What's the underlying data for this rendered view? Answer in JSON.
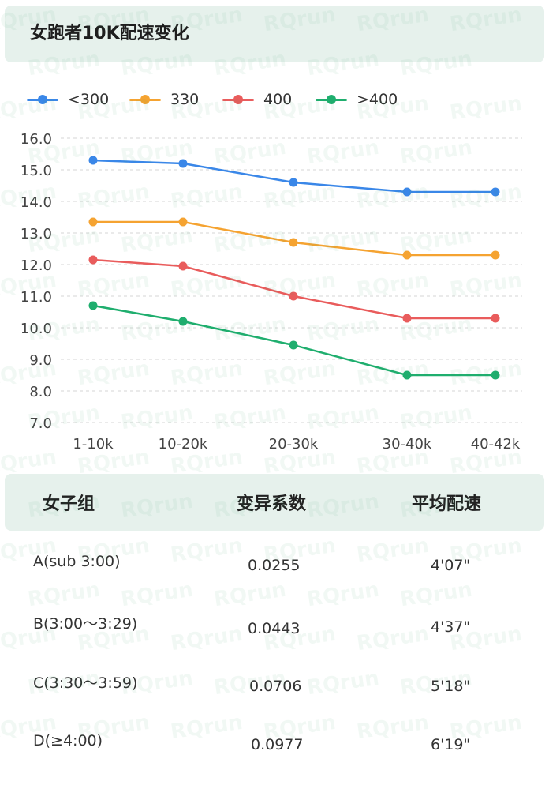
{
  "title": "女跑者10K配速变化",
  "watermark": "RQrun",
  "chart_data": {
    "type": "line",
    "categories": [
      "1-10k",
      "10-20k",
      "20-30k",
      "30-40k",
      "40-42k"
    ],
    "y_ticks": [
      "16.0",
      "15.0",
      "14.0",
      "13.0",
      "12.0",
      "11.0",
      "10.0",
      "9.0",
      "8.0",
      "7.0"
    ],
    "ylim": [
      7.0,
      16.0
    ],
    "grid": true,
    "legend_position": "top-left",
    "series": [
      {
        "name": "<300",
        "color": "#3a87e8",
        "values": [
          15.3,
          15.2,
          14.6,
          14.3,
          14.3
        ]
      },
      {
        "name": "330",
        "color": "#f5a331",
        "values": [
          13.35,
          13.35,
          12.7,
          12.3,
          12.3
        ]
      },
      {
        "name": "400",
        "color": "#e95c5c",
        "values": [
          12.15,
          11.95,
          11.0,
          10.3,
          10.3
        ]
      },
      {
        "name": ">400",
        "color": "#1fae6e",
        "values": [
          10.7,
          10.2,
          9.45,
          8.5,
          8.5
        ]
      }
    ]
  },
  "table": {
    "headers": [
      "女子组",
      "变异系数",
      "平均配速"
    ],
    "rows": [
      [
        "A(sub 3:00)",
        "0.0255",
        "4'07\""
      ],
      [
        "B(3:00～3:29)",
        "0.0443",
        "4'37\""
      ],
      [
        "C(3:30～3:59)",
        "0.0706",
        "5'18\""
      ],
      [
        "D(≥4:00)",
        "0.0977",
        "6'19\""
      ]
    ]
  }
}
